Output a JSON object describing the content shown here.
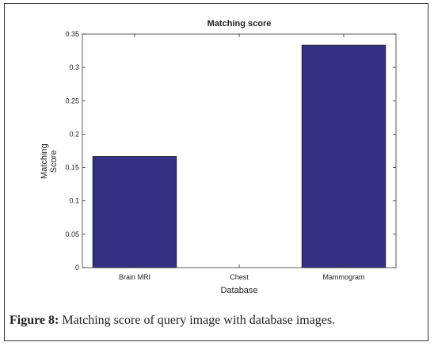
{
  "chart_data": {
    "type": "bar",
    "title": "Matching score",
    "xlabel": "Database",
    "ylabel": "Matching Score",
    "categories": [
      "Brain MRI",
      "Chest",
      "Mammogram"
    ],
    "values": [
      0.1667,
      0,
      0.3333
    ],
    "ylim": [
      0,
      0.35
    ],
    "yticks": [
      "0",
      "0.05",
      "0.1",
      "0.15",
      "0.2",
      "0.25",
      "0.3",
      "0.35"
    ],
    "bar_color": "#352f82",
    "grid": false,
    "legend": "none"
  },
  "caption": {
    "label": "Figure 8:",
    "text": " Matching score of query image with database images."
  }
}
